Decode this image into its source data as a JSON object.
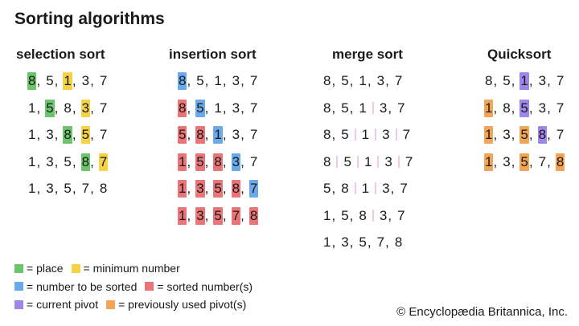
{
  "title": "Sorting algorithms",
  "colors": {
    "place": "#6cc46c",
    "minimum": "#f5d247",
    "to_sort": "#6aaaea",
    "sorted": "#ea7478",
    "pivot": "#9f86ea",
    "prev_pivot": "#f2a557",
    "merge_divider": "#f2c8e6"
  },
  "columns": [
    {
      "header": "selection sort",
      "rows": [
        {
          "n": [
            "8",
            "5",
            "1",
            "3",
            "7"
          ],
          "h": [
            "place",
            "",
            "minimum",
            "",
            ""
          ],
          "s": [
            ",",
            ",",
            ",",
            ","
          ]
        },
        {
          "n": [
            "1",
            "5",
            "8",
            "3",
            "7"
          ],
          "h": [
            "",
            "place",
            "",
            "minimum",
            ""
          ],
          "s": [
            ",",
            ",",
            ",",
            ","
          ]
        },
        {
          "n": [
            "1",
            "3",
            "8",
            "5",
            "7"
          ],
          "h": [
            "",
            "",
            "place",
            "minimum",
            ""
          ],
          "s": [
            ",",
            ",",
            ",",
            ","
          ]
        },
        {
          "n": [
            "1",
            "3",
            "5",
            "8",
            "7"
          ],
          "h": [
            "",
            "",
            "",
            "place",
            "minimum"
          ],
          "s": [
            ",",
            ",",
            ",",
            ","
          ]
        },
        {
          "n": [
            "1",
            "3",
            "5",
            "7",
            "8"
          ],
          "h": [
            "",
            "",
            "",
            "",
            ""
          ],
          "s": [
            ",",
            ",",
            ",",
            ","
          ]
        }
      ]
    },
    {
      "header": "insertion sort",
      "rows": [
        {
          "n": [
            "8",
            "5",
            "1",
            "3",
            "7"
          ],
          "h": [
            "to_sort",
            "",
            "",
            "",
            ""
          ],
          "s": [
            ",",
            ",",
            ",",
            ","
          ]
        },
        {
          "n": [
            "8",
            "5",
            "1",
            "3",
            "7"
          ],
          "h": [
            "sorted",
            "to_sort",
            "",
            "",
            ""
          ],
          "s": [
            ",",
            ",",
            ",",
            ","
          ]
        },
        {
          "n": [
            "5",
            "8",
            "1",
            "3",
            "7"
          ],
          "h": [
            "sorted",
            "sorted",
            "to_sort",
            "",
            ""
          ],
          "s": [
            ",",
            ",",
            ",",
            ","
          ]
        },
        {
          "n": [
            "1",
            "5",
            "8",
            "3",
            "7"
          ],
          "h": [
            "sorted",
            "sorted",
            "sorted",
            "to_sort",
            ""
          ],
          "s": [
            ",",
            ",",
            ",",
            ","
          ]
        },
        {
          "n": [
            "1",
            "3",
            "5",
            "8",
            "7"
          ],
          "h": [
            "sorted",
            "sorted",
            "sorted",
            "sorted",
            "to_sort"
          ],
          "s": [
            ",",
            ",",
            ",",
            ","
          ]
        },
        {
          "n": [
            "1",
            "3",
            "5",
            "7",
            "8"
          ],
          "h": [
            "sorted",
            "sorted",
            "sorted",
            "sorted",
            "sorted"
          ],
          "s": [
            ",",
            ",",
            ",",
            ","
          ]
        }
      ]
    },
    {
      "header": "merge sort",
      "rows": [
        {
          "n": [
            "8",
            "5",
            "1",
            "3",
            "7"
          ],
          "h": [
            "",
            "",
            "",
            "",
            ""
          ],
          "s": [
            ",",
            ",",
            ",",
            ","
          ]
        },
        {
          "n": [
            "8",
            "5",
            "1",
            "3",
            "7"
          ],
          "h": [
            "",
            "",
            "",
            "",
            ""
          ],
          "s": [
            ",",
            ",",
            "|",
            ","
          ]
        },
        {
          "n": [
            "8",
            "5",
            "1",
            "3",
            "7"
          ],
          "h": [
            "",
            "",
            "",
            "",
            ""
          ],
          "s": [
            ",",
            "|",
            "|",
            "|"
          ]
        },
        {
          "n": [
            "8",
            "5",
            "1",
            "3",
            "7"
          ],
          "h": [
            "",
            "",
            "",
            "",
            ""
          ],
          "s": [
            "|",
            "|",
            "|",
            "|"
          ]
        },
        {
          "n": [
            "5",
            "8",
            "1",
            "3",
            "7"
          ],
          "h": [
            "",
            "",
            "",
            "",
            ""
          ],
          "s": [
            ",",
            "|",
            "|",
            ","
          ]
        },
        {
          "n": [
            "1",
            "5",
            "8",
            "3",
            "7"
          ],
          "h": [
            "",
            "",
            "",
            "",
            ""
          ],
          "s": [
            ",",
            ",",
            "|",
            ","
          ]
        },
        {
          "n": [
            "1",
            "3",
            "5",
            "7",
            "8"
          ],
          "h": [
            "",
            "",
            "",
            "",
            ""
          ],
          "s": [
            ",",
            ",",
            ",",
            ","
          ]
        }
      ]
    },
    {
      "header": "Quicksort",
      "rows": [
        {
          "n": [
            "8",
            "5",
            "1",
            "3",
            "7"
          ],
          "h": [
            "",
            "",
            "pivot",
            "",
            ""
          ],
          "s": [
            ",",
            ",",
            ",",
            ","
          ]
        },
        {
          "n": [
            "1",
            "8",
            "5",
            "3",
            "7"
          ],
          "h": [
            "prev_pivot",
            "",
            "pivot",
            "",
            ""
          ],
          "s": [
            ",",
            ",",
            ",",
            ","
          ]
        },
        {
          "n": [
            "1",
            "3",
            "5",
            "8",
            "7"
          ],
          "h": [
            "prev_pivot",
            "",
            "prev_pivot",
            "pivot",
            ""
          ],
          "s": [
            ",",
            ",",
            ",",
            ","
          ]
        },
        {
          "n": [
            "1",
            "3",
            "5",
            "7",
            "8"
          ],
          "h": [
            "prev_pivot",
            "",
            "prev_pivot",
            "",
            "prev_pivot"
          ],
          "s": [
            ",",
            ",",
            ",",
            ","
          ]
        }
      ]
    }
  ],
  "legend": [
    [
      {
        "key": "place",
        "label": "= place"
      },
      {
        "key": "minimum",
        "label": "= minimum number"
      }
    ],
    [
      {
        "key": "to_sort",
        "label": "= number to be sorted"
      },
      {
        "key": "sorted",
        "label": "= sorted number(s)"
      }
    ],
    [
      {
        "key": "pivot",
        "label": "= current pivot"
      },
      {
        "key": "prev_pivot",
        "label": "= previously used pivot(s)"
      }
    ]
  ],
  "copyright": "© Encyclopædia Britannica, Inc."
}
